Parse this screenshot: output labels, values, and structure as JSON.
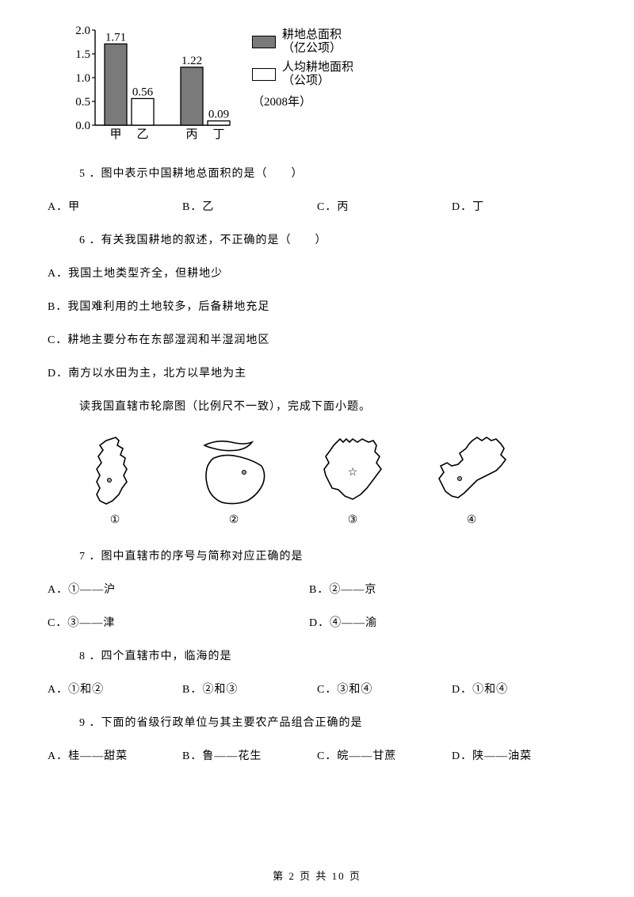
{
  "chart": {
    "type": "bar",
    "categories": [
      "甲",
      "乙",
      "丙",
      "丁"
    ],
    "values": [
      1.71,
      0.56,
      1.22,
      0.09
    ],
    "value_labels": [
      "1.71",
      "0.56",
      "1.22",
      "0.09"
    ],
    "bar_fill": [
      "#7a7a7a",
      "#ffffff",
      "#7a7a7a",
      "#ffffff"
    ],
    "bar_stroke": "#000000",
    "ylim": [
      0,
      2.0
    ],
    "ytick_step": 0.5,
    "yticks": [
      "0.0",
      "0.5",
      "1.0",
      "1.5",
      "2.0"
    ],
    "axis_color": "#000000",
    "font_size_pt": 15,
    "legend": {
      "items": [
        {
          "label": "耕地总面积",
          "unit": "（亿公项）",
          "filled": true
        },
        {
          "label": "人均耕地面积",
          "unit": "（公项）",
          "filled": false
        }
      ],
      "year": "（2008年）"
    }
  },
  "q5": {
    "num": "5",
    "text": "．图中表示中国耕地总面积的是（　　）",
    "opts": {
      "A": "A．甲",
      "B": "B．乙",
      "C": "C．丙",
      "D": "D．丁"
    }
  },
  "q6": {
    "num": "6",
    "text": "．有关我国耕地的叙述，不正确的是（　　）",
    "opts": {
      "A": "A．我国土地类型齐全，但耕地少",
      "B": "B．我国难利用的土地较多，后备耕地充足",
      "C": "C．耕地主要分布在东部湿润和半湿润地区",
      "D": "D．南方以水田为主，北方以旱地为主"
    }
  },
  "para_maps": "读我国直辖市轮廓图（比例尺不一致），完成下面小题。",
  "maps": {
    "labels": [
      "①",
      "②",
      "③",
      "④"
    ],
    "stroke": "#000000",
    "stroke_width": 1.6
  },
  "q7": {
    "num": "7",
    "text": "．图中直辖市的序号与简称对应正确的是",
    "opts": {
      "A": "A．①——沪",
      "B": "B．②——京",
      "C": "C．③——津",
      "D": "D．④——渝"
    }
  },
  "q8": {
    "num": "8",
    "text": "．四个直辖市中，临海的是",
    "opts": {
      "A": "A．①和②",
      "B": "B．②和③",
      "C": "C．③和④",
      "D": "D．①和④"
    }
  },
  "q9": {
    "num": "9",
    "text": "．下面的省级行政单位与其主要农产品组合正确的是",
    "opts": {
      "A": "A．桂——甜菜",
      "B": "B．鲁——花生",
      "C": "C．皖——甘蔗",
      "D": "D．陕——油菜"
    }
  },
  "footer": "第 2 页 共 10 页"
}
